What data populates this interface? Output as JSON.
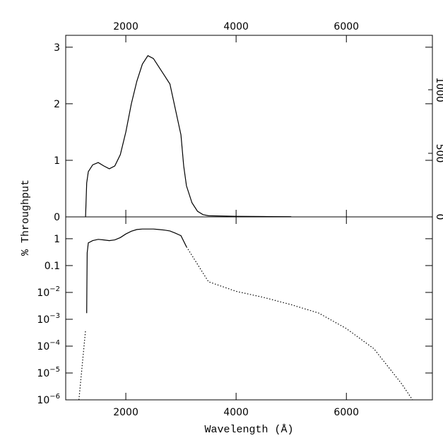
{
  "chart_data": [
    {
      "type": "line",
      "xticks": [
        2000,
        4000,
        6000
      ],
      "xlim": [
        910,
        7560
      ],
      "ylim": [
        0,
        3.21
      ],
      "yticks": [
        0,
        1,
        2,
        3
      ],
      "y2lim": [
        0,
        1428
      ],
      "y2ticks": [
        0,
        500,
        1000
      ],
      "color": "#000000",
      "series": [
        {
          "style": "solid",
          "x": [
            1270,
            1290,
            1320,
            1400,
            1500,
            1600,
            1700,
            1800,
            1900,
            2000,
            2100,
            2200,
            2300,
            2400,
            2500,
            2600,
            2700,
            2800,
            2900,
            3000,
            3050,
            3100,
            3200,
            3300,
            3400,
            3500,
            4000,
            4500,
            5000
          ],
          "values": [
            0,
            0.6,
            0.8,
            0.92,
            0.96,
            0.9,
            0.85,
            0.9,
            1.1,
            1.5,
            2.0,
            2.4,
            2.7,
            2.85,
            2.8,
            2.65,
            2.5,
            2.35,
            1.9,
            1.45,
            0.9,
            0.55,
            0.25,
            0.1,
            0.04,
            0.02,
            0.01,
            0.006,
            0.0035
          ]
        }
      ]
    },
    {
      "type": "line",
      "log_y": true,
      "xticks": [
        2000,
        4000,
        6000
      ],
      "xlim": [
        910,
        7560
      ],
      "ylim": [
        1e-06,
        6.5
      ],
      "yticks": [
        1,
        0.1,
        {
          "value": 0.01,
          "label": "10",
          "exponent": "−2"
        },
        {
          "value": 0.001,
          "label": "10",
          "exponent": "−3"
        },
        {
          "value": 0.0001,
          "label": "10",
          "exponent": "−4"
        },
        {
          "value": 1e-05,
          "label": "10",
          "exponent": "−5"
        },
        {
          "value": 1e-06,
          "label": "10",
          "exponent": "−6"
        }
      ],
      "xlabel": "Wavelength (Å)",
      "ylabel": "% Throughput",
      "color": "#000000",
      "series": [
        {
          "style": "solid",
          "x": [
            1290,
            1295,
            1300,
            1320,
            1400,
            1500,
            1600,
            1700,
            1800,
            1900,
            2000,
            2100,
            2200,
            2300,
            2400,
            2500,
            2600,
            2700,
            2800,
            2900,
            3000,
            3100
          ],
          "values": [
            0.0017,
            0.02,
            0.3,
            0.7,
            0.85,
            0.95,
            0.9,
            0.85,
            0.9,
            1.1,
            1.5,
            1.9,
            2.2,
            2.3,
            2.3,
            2.3,
            2.2,
            2.1,
            1.95,
            1.6,
            1.3,
            0.5
          ]
        },
        {
          "style": "dotted",
          "x": [
            3100,
            3500,
            4000,
            4500,
            5000,
            5500,
            6000,
            6500,
            7000,
            7200
          ],
          "values": [
            0.5,
            0.025,
            0.011,
            0.0065,
            0.0035,
            0.0017,
            0.00045,
            8e-05,
            4e-06,
            1e-06
          ]
        },
        {
          "style": "dotted",
          "x": [
            1150,
            1270
          ],
          "values": [
            1e-06,
            0.0004
          ]
        }
      ]
    }
  ]
}
